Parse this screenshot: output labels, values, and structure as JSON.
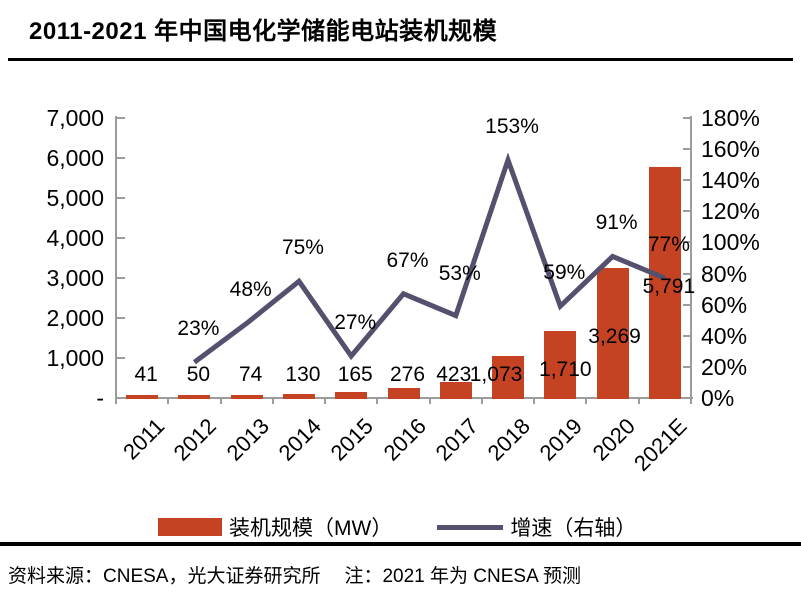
{
  "chart_data": {
    "type": "bar",
    "combo_types": [
      "bar",
      "line"
    ],
    "title": "2011-2021 年中国电化学储能电站装机规模",
    "categories": [
      "2011",
      "2012",
      "2013",
      "2014",
      "2015",
      "2016",
      "2017",
      "2018",
      "2019",
      "2020",
      "2021E"
    ],
    "series": [
      {
        "name": "装机规模（MW）",
        "type": "bar",
        "axis": "left",
        "color": "#C54322",
        "values": [
          41,
          50,
          74,
          130,
          165,
          276,
          423,
          1073,
          1710,
          3269,
          5791
        ],
        "labels": [
          "41",
          "50",
          "74",
          "130",
          "165",
          "276",
          "423",
          "1,073",
          "1,710",
          "3,269",
          "5,791"
        ]
      },
      {
        "name": "增速（右轴）",
        "type": "line",
        "axis": "right",
        "color": "#55506E",
        "values": [
          null,
          23,
          48,
          75,
          27,
          67,
          53,
          153,
          59,
          91,
          77
        ],
        "labels": [
          null,
          "23%",
          "48%",
          "75%",
          "27%",
          "67%",
          "53%",
          "153%",
          "59%",
          "91%",
          "77%"
        ]
      }
    ],
    "left_axis": {
      "min": 0,
      "max": 7000,
      "step": 1000,
      "tick_labels": [
        "-",
        "1,000",
        "2,000",
        "3,000",
        "4,000",
        "5,000",
        "6,000",
        "7,000"
      ]
    },
    "right_axis": {
      "min": 0,
      "max": 180,
      "step": 20,
      "tick_labels": [
        "0%",
        "20%",
        "40%",
        "60%",
        "80%",
        "100%",
        "120%",
        "140%",
        "160%",
        "180%"
      ]
    },
    "grid": false,
    "legend_position": "bottom",
    "axis_color": "#9C9C9C"
  },
  "footer": {
    "source": "资料来源：CNESA，光大证券研究所",
    "note": "注：2021 年为 CNESA 预测"
  }
}
